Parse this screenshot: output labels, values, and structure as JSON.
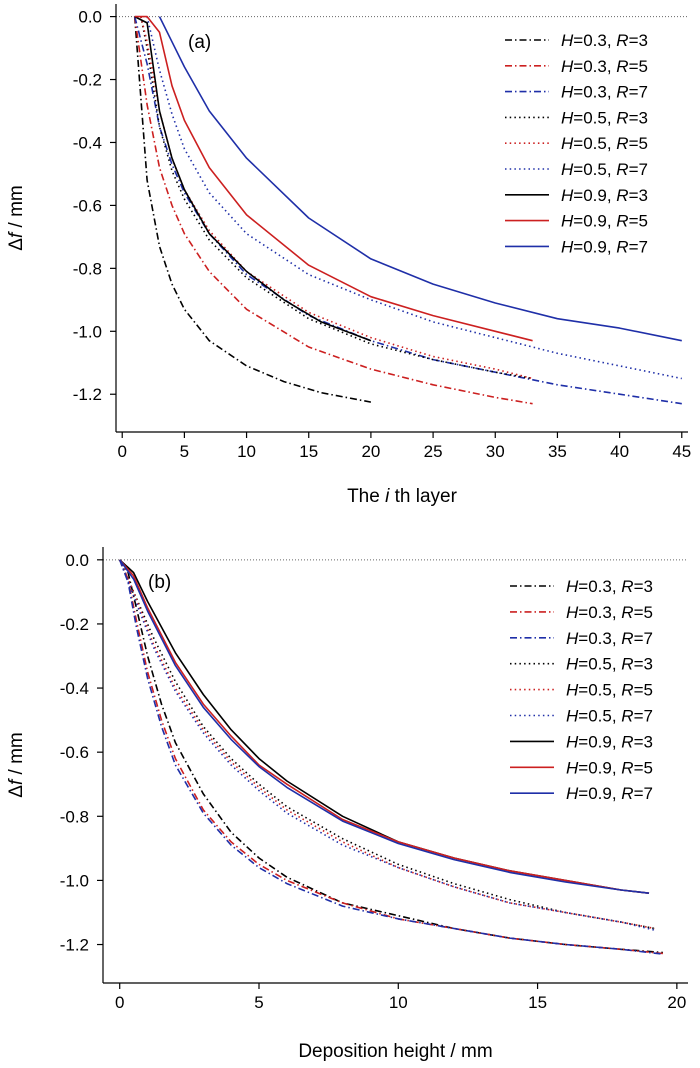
{
  "chart_data": [
    {
      "type": "line",
      "panel_label": "(a)",
      "xlabel_prefix": "The ",
      "xlabel_italic": "i",
      "xlabel_suffix": " th layer",
      "ylabel_symbol": "Δ",
      "ylabel_italic": "f",
      "ylabel_suffix": " / mm",
      "xlim": [
        -0.5,
        45.5
      ],
      "ylim": [
        -1.32,
        0.04
      ],
      "xticks": [
        "0",
        "5",
        "10",
        "15",
        "20",
        "25",
        "30",
        "35",
        "40",
        "45"
      ],
      "yticks": [
        "0.0",
        "-0.2",
        "-0.4",
        "-0.6",
        "-0.8",
        "-1.0",
        "-1.2"
      ],
      "zero_line": "dotted",
      "legend_position": "top-right",
      "series": [
        {
          "name_H": "0.3",
          "name_R": "3",
          "color": "#000000",
          "style": "dashdot",
          "x": [
            1,
            2,
            3,
            4,
            5,
            7,
            10,
            13,
            16,
            20
          ],
          "y": [
            0,
            -0.52,
            -0.73,
            -0.85,
            -0.93,
            -1.03,
            -1.11,
            -1.16,
            -1.195,
            -1.225
          ]
        },
        {
          "name_H": "0.3",
          "name_R": "5",
          "color": "#cc2020",
          "style": "dashdot",
          "x": [
            1,
            2,
            3,
            4,
            5,
            7,
            10,
            15,
            20,
            25,
            30,
            33
          ],
          "y": [
            0,
            -0.28,
            -0.48,
            -0.6,
            -0.69,
            -0.81,
            -0.93,
            -1.05,
            -1.12,
            -1.17,
            -1.21,
            -1.23
          ]
        },
        {
          "name_H": "0.3",
          "name_R": "7",
          "color": "#1f2fa8",
          "style": "dashdot",
          "x": [
            1,
            2,
            3,
            4,
            5,
            7,
            10,
            15,
            20,
            25,
            30,
            35,
            40,
            45
          ],
          "y": [
            0,
            -0.15,
            -0.35,
            -0.47,
            -0.56,
            -0.69,
            -0.82,
            -0.95,
            -1.03,
            -1.09,
            -1.13,
            -1.17,
            -1.2,
            -1.23
          ]
        },
        {
          "name_H": "0.5",
          "name_R": "3",
          "color": "#000000",
          "style": "dotted",
          "x": [
            1.5,
            2,
            3,
            4,
            5,
            7,
            10,
            15,
            20,
            25,
            30,
            33
          ],
          "y": [
            0,
            -0.1,
            -0.35,
            -0.49,
            -0.58,
            -0.71,
            -0.83,
            -0.96,
            -1.04,
            -1.09,
            -1.13,
            -1.15
          ]
        },
        {
          "name_H": "0.5",
          "name_R": "5",
          "color": "#cc2020",
          "style": "dotted",
          "x": [
            1.5,
            2,
            3,
            4,
            5,
            7,
            10,
            15,
            20,
            25,
            30,
            33
          ],
          "y": [
            0,
            -0.08,
            -0.3,
            -0.45,
            -0.55,
            -0.68,
            -0.81,
            -0.94,
            -1.02,
            -1.08,
            -1.12,
            -1.15
          ]
        },
        {
          "name_H": "0.5",
          "name_R": "7",
          "color": "#1f2fa8",
          "style": "dotted",
          "x": [
            2,
            3,
            4,
            5,
            7,
            10,
            15,
            20,
            25,
            30,
            35,
            40,
            45
          ],
          "y": [
            0,
            -0.17,
            -0.31,
            -0.42,
            -0.56,
            -0.69,
            -0.82,
            -0.9,
            -0.97,
            -1.02,
            -1.07,
            -1.11,
            -1.15
          ]
        },
        {
          "name_H": "0.9",
          "name_R": "3",
          "color": "#000000",
          "style": "solid",
          "x": [
            1,
            2,
            3,
            4,
            5,
            7,
            10,
            13,
            16,
            20
          ],
          "y": [
            0,
            -0.02,
            -0.3,
            -0.45,
            -0.55,
            -0.69,
            -0.81,
            -0.9,
            -0.97,
            -1.03
          ]
        },
        {
          "name_H": "0.9",
          "name_R": "5",
          "color": "#cc2020",
          "style": "solid",
          "x": [
            1,
            2,
            3,
            4,
            5,
            7,
            10,
            15,
            20,
            25,
            30,
            33
          ],
          "y": [
            0,
            0,
            -0.05,
            -0.22,
            -0.33,
            -0.48,
            -0.63,
            -0.79,
            -0.89,
            -0.95,
            -1.0,
            -1.03
          ]
        },
        {
          "name_H": "0.9",
          "name_R": "7",
          "color": "#1f2fa8",
          "style": "solid",
          "x": [
            3,
            4,
            5,
            7,
            10,
            15,
            20,
            25,
            30,
            35,
            40,
            45
          ],
          "y": [
            0,
            -0.08,
            -0.16,
            -0.3,
            -0.45,
            -0.64,
            -0.77,
            -0.85,
            -0.91,
            -0.96,
            -0.99,
            -1.03
          ]
        }
      ]
    },
    {
      "type": "line",
      "panel_label": "(b)",
      "xlabel_prefix": "Deposition height / mm",
      "xlabel_italic": "",
      "xlabel_suffix": "",
      "ylabel_symbol": "Δ",
      "ylabel_italic": "f",
      "ylabel_suffix": " / mm",
      "xlim": [
        -0.6,
        20.4
      ],
      "ylim": [
        -1.32,
        0.04
      ],
      "xticks": [
        "0",
        "5",
        "10",
        "15",
        "20"
      ],
      "yticks": [
        "0.0",
        "-0.2",
        "-0.4",
        "-0.6",
        "-0.8",
        "-1.0",
        "-1.2"
      ],
      "zero_line": "dotted",
      "legend_position": "top-right",
      "series": [
        {
          "name_H": "0.3",
          "name_R": "3",
          "color": "#000000",
          "style": "dashdot",
          "x": [
            0,
            0.3,
            0.6,
            1,
            1.5,
            2,
            3,
            4,
            5,
            6,
            8,
            10,
            12,
            14,
            16,
            18,
            19.5
          ],
          "y": [
            0,
            -0.04,
            -0.15,
            -0.3,
            -0.45,
            -0.57,
            -0.73,
            -0.85,
            -0.93,
            -0.99,
            -1.07,
            -1.11,
            -1.15,
            -1.18,
            -1.2,
            -1.215,
            -1.225
          ]
        },
        {
          "name_H": "0.3",
          "name_R": "5",
          "color": "#cc2020",
          "style": "dashdot",
          "x": [
            0,
            0.3,
            0.6,
            1,
            1.5,
            2,
            3,
            4,
            5,
            6,
            8,
            10,
            12,
            14,
            16,
            18,
            19.5
          ],
          "y": [
            0,
            -0.06,
            -0.19,
            -0.35,
            -0.5,
            -0.62,
            -0.78,
            -0.88,
            -0.95,
            -1.0,
            -1.07,
            -1.12,
            -1.15,
            -1.18,
            -1.2,
            -1.215,
            -1.228
          ]
        },
        {
          "name_H": "0.3",
          "name_R": "7",
          "color": "#1f2fa8",
          "style": "dashdot",
          "x": [
            0,
            0.3,
            0.6,
            1,
            1.5,
            2,
            3,
            4,
            5,
            6,
            8,
            10,
            12,
            14,
            16,
            18,
            19.5
          ],
          "y": [
            0,
            -0.07,
            -0.21,
            -0.37,
            -0.52,
            -0.64,
            -0.79,
            -0.89,
            -0.96,
            -1.01,
            -1.08,
            -1.12,
            -1.15,
            -1.18,
            -1.2,
            -1.215,
            -1.23
          ]
        },
        {
          "name_H": "0.5",
          "name_R": "3",
          "color": "#000000",
          "style": "dotted",
          "x": [
            0,
            0.4,
            0.8,
            1.2,
            2,
            3,
            4,
            5,
            6,
            8,
            10,
            12,
            14,
            16,
            18,
            19.2
          ],
          "y": [
            0,
            -0.08,
            -0.16,
            -0.24,
            -0.38,
            -0.52,
            -0.62,
            -0.7,
            -0.77,
            -0.87,
            -0.95,
            -1.01,
            -1.06,
            -1.1,
            -1.13,
            -1.15
          ]
        },
        {
          "name_H": "0.5",
          "name_R": "5",
          "color": "#cc2020",
          "style": "dotted",
          "x": [
            0,
            0.4,
            0.8,
            1.2,
            2,
            3,
            4,
            5,
            6,
            8,
            10,
            12,
            14,
            16,
            18,
            19.2
          ],
          "y": [
            0,
            -0.08,
            -0.17,
            -0.26,
            -0.4,
            -0.53,
            -0.63,
            -0.71,
            -0.78,
            -0.88,
            -0.96,
            -1.02,
            -1.07,
            -1.1,
            -1.13,
            -1.15
          ]
        },
        {
          "name_H": "0.5",
          "name_R": "7",
          "color": "#1f2fa8",
          "style": "dotted",
          "x": [
            0,
            0.4,
            0.8,
            1.2,
            2,
            3,
            4,
            5,
            6,
            8,
            10,
            12,
            14,
            16,
            18,
            19.2
          ],
          "y": [
            0,
            -0.09,
            -0.18,
            -0.27,
            -0.41,
            -0.54,
            -0.64,
            -0.72,
            -0.79,
            -0.89,
            -0.96,
            -1.02,
            -1.07,
            -1.1,
            -1.13,
            -1.155
          ]
        },
        {
          "name_H": "0.9",
          "name_R": "3",
          "color": "#000000",
          "style": "solid",
          "x": [
            0,
            0.5,
            1,
            2,
            3,
            4,
            5,
            6,
            8,
            10,
            12,
            14,
            16,
            18,
            19
          ],
          "y": [
            0,
            -0.04,
            -0.13,
            -0.29,
            -0.42,
            -0.53,
            -0.62,
            -0.69,
            -0.8,
            -0.88,
            -0.93,
            -0.97,
            -1.0,
            -1.03,
            -1.04
          ]
        },
        {
          "name_H": "0.9",
          "name_R": "5",
          "color": "#cc2020",
          "style": "solid",
          "x": [
            0,
            0.5,
            1,
            2,
            3,
            4,
            5,
            6,
            8,
            10,
            12,
            14,
            16,
            18,
            19
          ],
          "y": [
            0,
            -0.05,
            -0.15,
            -0.32,
            -0.45,
            -0.55,
            -0.64,
            -0.7,
            -0.81,
            -0.88,
            -0.93,
            -0.97,
            -1.0,
            -1.03,
            -1.04
          ]
        },
        {
          "name_H": "0.9",
          "name_R": "7",
          "color": "#1f2fa8",
          "style": "solid",
          "x": [
            0,
            0.5,
            1,
            2,
            3,
            4,
            5,
            6,
            8,
            10,
            12,
            14,
            16,
            18,
            19
          ],
          "y": [
            0,
            -0.06,
            -0.16,
            -0.33,
            -0.46,
            -0.56,
            -0.645,
            -0.71,
            -0.815,
            -0.885,
            -0.935,
            -0.975,
            -1.005,
            -1.03,
            -1.04
          ]
        }
      ]
    }
  ]
}
